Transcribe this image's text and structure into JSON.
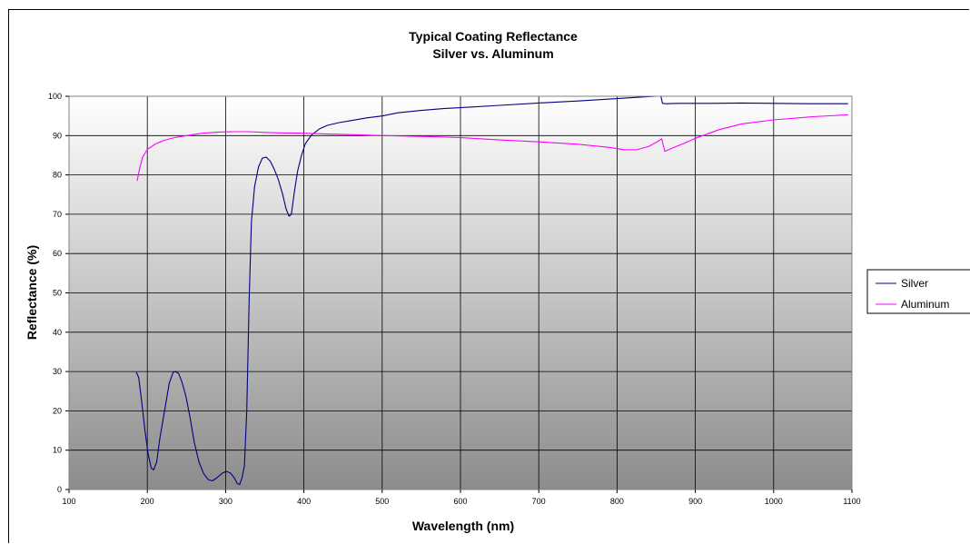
{
  "chart_data": {
    "type": "line",
    "title": "Typical Coating Reflectance",
    "subtitle": "Silver vs. Aluminum",
    "xlabel": "Wavelength (nm)",
    "ylabel": "Reflectance (%)",
    "xlim": [
      100,
      1100
    ],
    "ylim": [
      0,
      100
    ],
    "x_ticks": [
      100,
      200,
      300,
      400,
      500,
      600,
      700,
      800,
      900,
      1000,
      1100
    ],
    "y_ticks": [
      0,
      10,
      20,
      30,
      40,
      50,
      60,
      70,
      80,
      90,
      100
    ],
    "grid": true,
    "legend_position": "right",
    "series": [
      {
        "name": "Silver",
        "color": "#000080",
        "points": [
          [
            186,
            29.8
          ],
          [
            189,
            28.5
          ],
          [
            193,
            22
          ],
          [
            197,
            15
          ],
          [
            201,
            9
          ],
          [
            205,
            5.5
          ],
          [
            208,
            5
          ],
          [
            212,
            7
          ],
          [
            216,
            13
          ],
          [
            222,
            20
          ],
          [
            228,
            27
          ],
          [
            233,
            29.8
          ],
          [
            236,
            30
          ],
          [
            240,
            29.5
          ],
          [
            244,
            27.5
          ],
          [
            249,
            24
          ],
          [
            254,
            19
          ],
          [
            260,
            12
          ],
          [
            266,
            7
          ],
          [
            272,
            4
          ],
          [
            278,
            2.5
          ],
          [
            283,
            2.2
          ],
          [
            289,
            3
          ],
          [
            296,
            4.2
          ],
          [
            301,
            4.6
          ],
          [
            306,
            4.2
          ],
          [
            311,
            3
          ],
          [
            315,
            1.5
          ],
          [
            318,
            1.3
          ],
          [
            321,
            3
          ],
          [
            324,
            6
          ],
          [
            327,
            20
          ],
          [
            330,
            48
          ],
          [
            333,
            68
          ],
          [
            337,
            77
          ],
          [
            342,
            82
          ],
          [
            347,
            84.3
          ],
          [
            352,
            84.5
          ],
          [
            357,
            83.5
          ],
          [
            362,
            81.5
          ],
          [
            367,
            79
          ],
          [
            373,
            75
          ],
          [
            377,
            71.5
          ],
          [
            381,
            69.5
          ],
          [
            384,
            70
          ],
          [
            388,
            76
          ],
          [
            392,
            81
          ],
          [
            397,
            85
          ],
          [
            402,
            88
          ],
          [
            410,
            90.2
          ],
          [
            420,
            91.7
          ],
          [
            430,
            92.6
          ],
          [
            445,
            93.3
          ],
          [
            460,
            93.8
          ],
          [
            480,
            94.5
          ],
          [
            500,
            95
          ],
          [
            520,
            95.8
          ],
          [
            550,
            96.4
          ],
          [
            580,
            96.9
          ],
          [
            610,
            97.2
          ],
          [
            650,
            97.7
          ],
          [
            700,
            98.3
          ],
          [
            750,
            98.8
          ],
          [
            800,
            99.4
          ],
          [
            830,
            99.8
          ],
          [
            850,
            100
          ],
          [
            856,
            100
          ],
          [
            858,
            98.2
          ],
          [
            862,
            98.1
          ],
          [
            880,
            98.2
          ],
          [
            920,
            98.2
          ],
          [
            960,
            98.3
          ],
          [
            1000,
            98.2
          ],
          [
            1050,
            98.1
          ],
          [
            1095,
            98.1
          ]
        ]
      },
      {
        "name": "Aluminum",
        "color": "#ff00ff",
        "points": [
          [
            187,
            78.5
          ],
          [
            190,
            81.5
          ],
          [
            194,
            84.5
          ],
          [
            200,
            86.5
          ],
          [
            210,
            87.8
          ],
          [
            220,
            88.7
          ],
          [
            235,
            89.5
          ],
          [
            250,
            90
          ],
          [
            270,
            90.6
          ],
          [
            290,
            90.9
          ],
          [
            310,
            91
          ],
          [
            330,
            91
          ],
          [
            350,
            90.8
          ],
          [
            370,
            90.7
          ],
          [
            400,
            90.6
          ],
          [
            430,
            90.4
          ],
          [
            470,
            90.2
          ],
          [
            500,
            90
          ],
          [
            550,
            89.8
          ],
          [
            600,
            89.5
          ],
          [
            650,
            88.9
          ],
          [
            700,
            88.4
          ],
          [
            750,
            87.8
          ],
          [
            790,
            87
          ],
          [
            810,
            86.4
          ],
          [
            825,
            86.4
          ],
          [
            840,
            87.2
          ],
          [
            852,
            88.5
          ],
          [
            857,
            89.2
          ],
          [
            861,
            86
          ],
          [
            870,
            86.8
          ],
          [
            885,
            88
          ],
          [
            900,
            89.3
          ],
          [
            930,
            91.5
          ],
          [
            960,
            93
          ],
          [
            1000,
            94
          ],
          [
            1050,
            94.8
          ],
          [
            1095,
            95.3
          ]
        ]
      }
    ]
  }
}
